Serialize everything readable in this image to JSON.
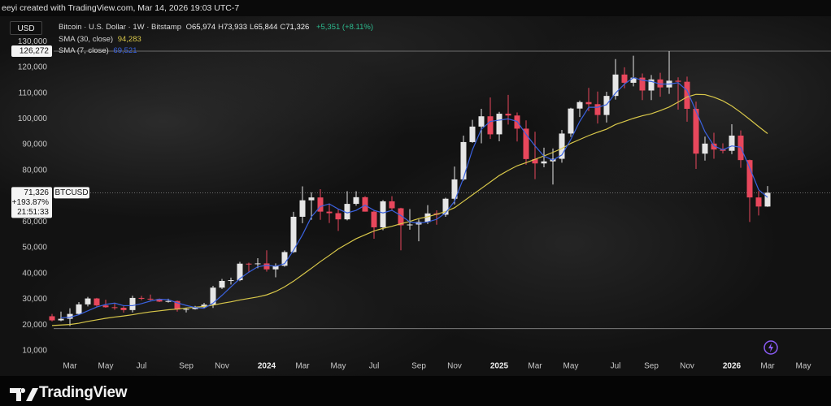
{
  "header": {
    "attribution": "eeyi created with TradingView.com, Mar 14, 2026 19:03 UTC-7",
    "currency": "USD",
    "brand": "TradingView"
  },
  "legend": {
    "instrument": "Bitcoin · U.S. Dollar · 1W · Bitstamp",
    "ohlc": [
      {
        "label": "O",
        "value": "65,974"
      },
      {
        "label": "H",
        "value": "73,933"
      },
      {
        "label": "L",
        "value": "65,844"
      },
      {
        "label": "C",
        "value": "71,326"
      }
    ],
    "change": "+5,351 (+8.11%)"
  },
  "chart_data": {
    "type": "candlestick",
    "name": "BTCUSD",
    "up_color": "#e6e6e6",
    "down_color": "#e8475c",
    "categories": [
      null,
      null,
      "Mar",
      null,
      null,
      null,
      "May",
      null,
      null,
      null,
      "Jul",
      null,
      null,
      null,
      null,
      "Sep",
      null,
      null,
      null,
      "Nov",
      null,
      null,
      null,
      null,
      "2024",
      null,
      null,
      null,
      "Mar",
      null,
      null,
      null,
      "May",
      null,
      null,
      null,
      "Jul",
      null,
      null,
      null,
      null,
      "Sep",
      null,
      null,
      null,
      "Nov",
      null,
      null,
      null,
      null,
      "2025",
      null,
      null,
      null,
      "Mar",
      null,
      null,
      null,
      "May",
      null,
      null,
      null,
      null,
      "Jul",
      null,
      null,
      null,
      "Sep",
      null,
      null,
      null,
      "Nov",
      null,
      null,
      null,
      null,
      "2026",
      null,
      null,
      null,
      "Mar",
      null,
      null,
      null,
      "May",
      null
    ],
    "open": [
      23400,
      21800,
      22400,
      24300,
      28000,
      30300,
      27600,
      26900,
      26700,
      25800,
      30500,
      30200,
      30100,
      29100,
      29300,
      26000,
      26200,
      26900,
      27900,
      34500,
      37100,
      37400,
      43800,
      43600,
      43900,
      41600,
      43000,
      48300,
      62000,
      68400,
      69500,
      64000,
      63400,
      61000,
      67000,
      69600,
      64000,
      57900,
      68000,
      65300,
      58700,
      59000,
      60000,
      63300,
      62800,
      69000,
      76500,
      91000,
      97000,
      101000,
      94000,
      102000,
      101300,
      96200,
      84400,
      82700,
      83500,
      84500,
      94300,
      104000,
      106500,
      105700,
      101500,
      108900,
      117200,
      114000,
      116000,
      111000,
      115300,
      112200,
      114800,
      114400,
      103900,
      86500,
      90400,
      88100,
      87600,
      93500,
      84000,
      69500,
      65974,
      null,
      null,
      null,
      null,
      null
    ],
    "high": [
      24300,
      25200,
      26500,
      28900,
      30900,
      30500,
      29800,
      28400,
      27300,
      31400,
      31300,
      31800,
      30300,
      30200,
      29500,
      26700,
      27400,
      28600,
      35200,
      37900,
      38400,
      44500,
      44200,
      45900,
      49000,
      43900,
      48900,
      63900,
      73800,
      71500,
      72700,
      67200,
      65000,
      71900,
      71900,
      70000,
      64600,
      68500,
      70000,
      65500,
      65000,
      61000,
      66500,
      64500,
      69400,
      81500,
      93500,
      99600,
      103900,
      108300,
      102700,
      109300,
      102500,
      99400,
      95000,
      88800,
      88500,
      95700,
      104300,
      107100,
      112000,
      110600,
      110500,
      123200,
      120000,
      124500,
      117600,
      117000,
      117900,
      126272,
      116100,
      116400,
      106700,
      93100,
      94600,
      90500,
      97900,
      95500,
      84200,
      72000,
      73933,
      null,
      null,
      null,
      null,
      null
    ],
    "low": [
      21400,
      21500,
      19600,
      24000,
      27200,
      26900,
      26700,
      25900,
      24800,
      24900,
      29600,
      29500,
      28900,
      28700,
      25200,
      24900,
      26000,
      26600,
      26600,
      34000,
      35700,
      37000,
      40500,
      42000,
      40700,
      38500,
      42600,
      48000,
      59500,
      60800,
      60800,
      59600,
      56500,
      60600,
      66300,
      64000,
      53500,
      56800,
      64500,
      49000,
      57000,
      52500,
      59200,
      58900,
      62000,
      66800,
      76000,
      90700,
      90500,
      92200,
      91300,
      97800,
      91200,
      82200,
      76600,
      81200,
      74500,
      83000,
      93000,
      100700,
      103000,
      98200,
      98600,
      107500,
      111900,
      112600,
      107300,
      107300,
      108600,
      109700,
      103600,
      98900,
      80600,
      83800,
      84500,
      86600,
      86300,
      81000,
      60000,
      62500,
      65844,
      null,
      null,
      null,
      null,
      null
    ],
    "close": [
      21800,
      22400,
      24300,
      28000,
      30300,
      27600,
      26900,
      26700,
      25800,
      30500,
      30200,
      30100,
      29100,
      29300,
      26000,
      26200,
      26900,
      27900,
      34500,
      37100,
      37400,
      43800,
      43600,
      43900,
      41600,
      43000,
      48300,
      62000,
      68400,
      69500,
      64000,
      63400,
      61000,
      67000,
      69600,
      64000,
      57900,
      68000,
      65300,
      58700,
      59000,
      60000,
      63300,
      62800,
      69000,
      76500,
      91000,
      97000,
      101000,
      94000,
      102000,
      101300,
      96200,
      84400,
      82700,
      83500,
      84500,
      94300,
      104000,
      106500,
      105700,
      101500,
      108900,
      117200,
      114000,
      116000,
      111000,
      115300,
      112200,
      114800,
      114400,
      103900,
      86500,
      90400,
      88100,
      87600,
      93500,
      84000,
      69500,
      65974,
      71326,
      null,
      null,
      null,
      null,
      null
    ],
    "series": [
      {
        "name": "SMA (30, close)",
        "color": "#d9c84a",
        "last_value_label": "94,283",
        "values": [
          19800,
          20000,
          20200,
          20700,
          21400,
          22000,
          22600,
          23100,
          23500,
          24000,
          24600,
          25100,
          25500,
          25900,
          26200,
          26600,
          26900,
          27200,
          27700,
          28400,
          29000,
          29700,
          30300,
          30900,
          31700,
          33000,
          34800,
          37000,
          39500,
          42000,
          44600,
          47000,
          49500,
          51500,
          53500,
          55000,
          56500,
          57500,
          58300,
          59300,
          60200,
          61300,
          62000,
          63000,
          64000,
          65500,
          68000,
          70500,
          73000,
          75500,
          78000,
          80000,
          81800,
          83000,
          84300,
          85600,
          87000,
          88500,
          90500,
          92000,
          93500,
          94800,
          96000,
          97800,
          99000,
          100200,
          101200,
          102000,
          103200,
          104600,
          106500,
          108500,
          109500,
          109400,
          108400,
          107000,
          105000,
          102500,
          99800,
          97000,
          94283,
          null,
          null,
          null,
          null,
          null
        ]
      },
      {
        "name": "SMA (7, close)",
        "color": "#3a62e0",
        "last_value_label": "69,521",
        "values": [
          null,
          22800,
          23000,
          24000,
          25500,
          27000,
          28000,
          28500,
          27500,
          27500,
          28300,
          29300,
          30000,
          29800,
          28600,
          27600,
          26800,
          26500,
          28500,
          31500,
          34800,
          38000,
          40500,
          42600,
          43200,
          42800,
          43800,
          49000,
          55000,
          62000,
          66000,
          67000,
          65000,
          63500,
          64500,
          66500,
          64500,
          63500,
          64500,
          62500,
          60000,
          59500,
          60000,
          61000,
          63500,
          68000,
          77000,
          88000,
          96000,
          99000,
          99500,
          100000,
          99000,
          94000,
          89500,
          85500,
          84000,
          86000,
          92000,
          99000,
          104500,
          104500,
          105500,
          110000,
          113500,
          116000,
          115000,
          114500,
          113500,
          113500,
          114000,
          111000,
          103000,
          95000,
          89500,
          88000,
          89500,
          89000,
          81000,
          72500,
          69521,
          null,
          null,
          null,
          null,
          null
        ]
      }
    ],
    "ylim": [
      5900,
      137300
    ],
    "yticks": [
      {
        "value": 10000,
        "label": "10,000"
      },
      {
        "value": 20000,
        "label": "20,000"
      },
      {
        "value": 30000,
        "label": "30,000"
      },
      {
        "value": 40000,
        "label": "40,000"
      },
      {
        "value": 50000,
        "label": "50,000"
      },
      {
        "value": 60000,
        "label": "60,000"
      },
      {
        "value": 80000,
        "label": "80,000"
      },
      {
        "value": 90000,
        "label": "90,000"
      },
      {
        "value": 100000,
        "label": "100,000"
      },
      {
        "value": 110000,
        "label": "110,000"
      },
      {
        "value": 120000,
        "label": "120,000"
      },
      {
        "value": 130000,
        "label": "130,000"
      }
    ],
    "grid": false,
    "price_lines": [
      {
        "value": 126272,
        "label": "126,272",
        "style": "solid"
      },
      {
        "value": 71326,
        "label": "71,326",
        "change": "+193.87%",
        "countdown": "21:51:33",
        "symbol": "BTCUSD",
        "style": "dashed"
      },
      {
        "value": 18600,
        "style": "solid"
      }
    ]
  }
}
